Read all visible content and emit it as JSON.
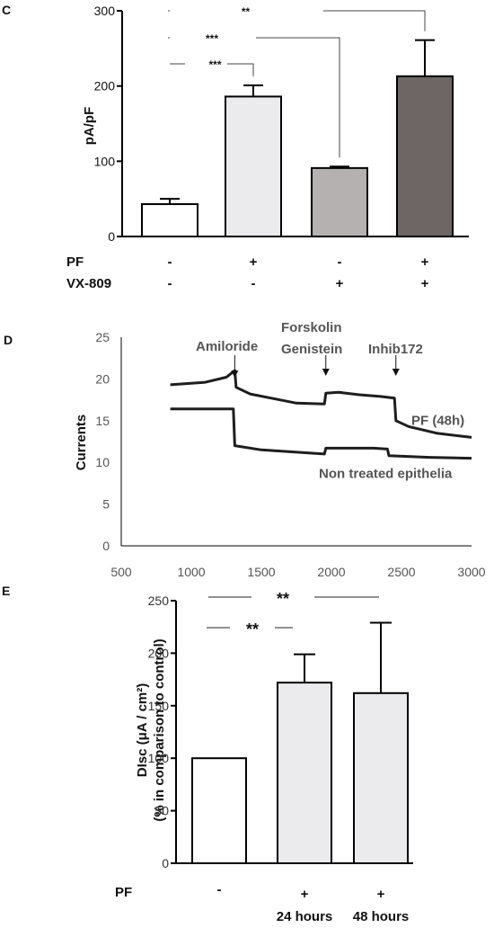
{
  "figure": {
    "panel_c": "C",
    "panel_d": "D",
    "panel_e": "E"
  },
  "chart_data": [
    {
      "panel": "C",
      "type": "bar",
      "ylabel": "pA/pF",
      "ylim": [
        0,
        300
      ],
      "yticks": [
        "0",
        "100",
        "200",
        "300"
      ],
      "values": [
        43,
        186,
        91,
        213
      ],
      "errors": [
        7,
        15,
        2,
        48
      ],
      "colors": [
        "#ffffff",
        "#ebebee",
        "#b5b1b1",
        "#6e6565"
      ],
      "conditions": [
        {
          "label": "PF",
          "marks": [
            "-",
            "+",
            "-",
            "+"
          ]
        },
        {
          "label": "VX-809",
          "marks": [
            "-",
            "-",
            "+",
            "+"
          ]
        }
      ],
      "significance": [
        {
          "from": 0,
          "to": 1,
          "label": "***"
        },
        {
          "from": 0,
          "to": 2,
          "label": "***"
        },
        {
          "from": 0,
          "to": 3,
          "label": "**"
        }
      ]
    },
    {
      "panel": "D",
      "type": "line",
      "ylabel": "Currents",
      "xlim": [
        500,
        3000
      ],
      "ylim": [
        0,
        25
      ],
      "xticks": [
        "500",
        "1000",
        "1500",
        "2000",
        "2500",
        "3000"
      ],
      "yticks": [
        "0",
        "5",
        "10",
        "15",
        "20",
        "25"
      ],
      "series": [
        {
          "name": "PF (48h)",
          "x": [
            850,
            1100,
            1250,
            1310,
            1320,
            1420,
            1600,
            1750,
            1950,
            1960,
            2050,
            2200,
            2350,
            2450,
            2460,
            2550,
            2750,
            3000
          ],
          "y": [
            19.3,
            19.6,
            20.2,
            21.0,
            19.0,
            18.2,
            17.6,
            17.1,
            17.0,
            18.3,
            18.4,
            18.1,
            17.9,
            17.7,
            15.0,
            14.3,
            13.5,
            13.0
          ]
        },
        {
          "name": "Non treated epithelia",
          "x": [
            850,
            1300,
            1310,
            1500,
            1950,
            1960,
            2300,
            2400,
            2410,
            2700,
            3000
          ],
          "y": [
            16.4,
            16.4,
            12.0,
            11.5,
            11.0,
            11.7,
            11.7,
            11.6,
            10.8,
            10.6,
            10.5
          ]
        }
      ],
      "annotations": [
        {
          "text": "Amiloride",
          "x": 1310
        },
        {
          "text": "Forskolin",
          "x": 1960
        },
        {
          "text": "Genistein",
          "x": 1960
        },
        {
          "text": "Inhib172",
          "x": 2460
        }
      ]
    },
    {
      "panel": "E",
      "type": "bar",
      "ylabel": "DIsc (μA / cm²)",
      "ylabel2": "(% in comparison to control)",
      "ylim": [
        0,
        250
      ],
      "yticks": [
        "0",
        "50",
        "100",
        "150",
        "200",
        "250"
      ],
      "values": [
        100,
        172,
        162
      ],
      "errors": [
        0,
        27,
        67
      ],
      "colors": [
        "#ffffff",
        "#ebebee",
        "#ebebee"
      ],
      "condition_label": "PF",
      "marks": [
        "-",
        "+",
        "+"
      ],
      "sublabels": [
        "",
        "24 hours",
        "48 hours"
      ],
      "significance": [
        {
          "from": 0,
          "to": 1,
          "label": "**"
        },
        {
          "from": 0,
          "to": 2,
          "label": "**"
        }
      ]
    }
  ]
}
